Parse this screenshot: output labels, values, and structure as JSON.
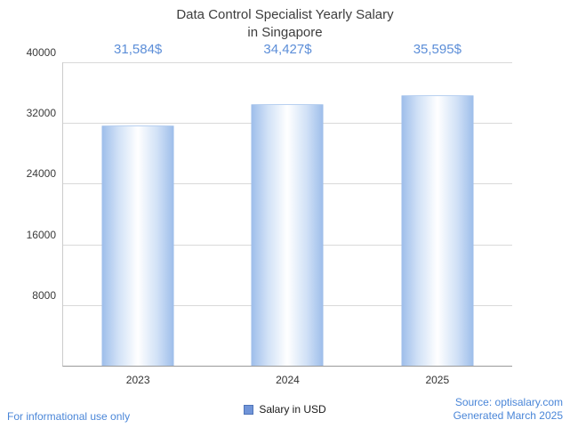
{
  "header": {
    "title": "Data Control Specialist Yearly Salary",
    "subtitle": "in Singapore"
  },
  "chart_data": {
    "type": "bar",
    "title": "Data Control Specialist Yearly Salary in Singapore",
    "categories": [
      "2023",
      "2024",
      "2025"
    ],
    "values": [
      31584,
      34427,
      35595
    ],
    "value_labels": [
      "31,584$",
      "34,427$",
      "35,595$"
    ],
    "xlabel": "",
    "ylabel": "",
    "ylim": [
      0,
      40000
    ],
    "yticks": [
      8000,
      16000,
      24000,
      32000,
      40000
    ],
    "grid": true,
    "legend": {
      "label": "Salary in USD",
      "position": "bottom"
    }
  },
  "colors": {
    "bar_edge": "#9dbdea",
    "bar_center": "#ffffff",
    "value_label": "#5c8ed8",
    "footer_blue": "#4a86d8",
    "gridline": "#d9d9d9",
    "title_text": "#3d3d3d"
  },
  "footer": {
    "left": "For informational use only",
    "source": "Source: optisalary.com",
    "generated": "Generated March 2025"
  }
}
